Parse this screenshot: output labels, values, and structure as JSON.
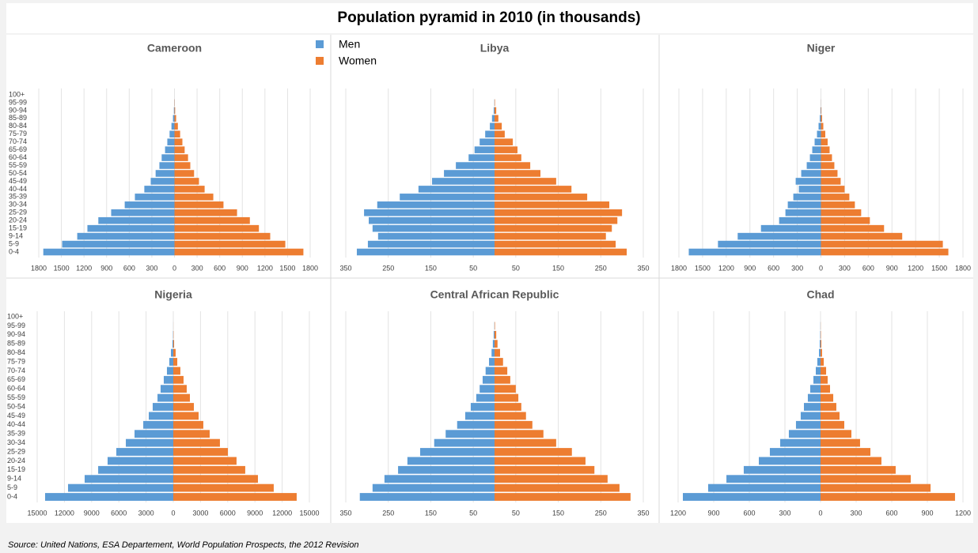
{
  "title": "Population pyramid in 2010 (in thousands)",
  "source": "Source: United Nations, ESA Departement, World Population Prospects, the 2012 Revision",
  "chart_data": [
    {
      "type": "bar",
      "orientation": "horizontal",
      "title": "Cameroon",
      "categories": [
        "0-4",
        "5-9",
        "9-14",
        "15-19",
        "20-24",
        "25-29",
        "30-34",
        "35-39",
        "40-44",
        "45-49",
        "50-54",
        "55-59",
        "60-64",
        "65-69",
        "70-74",
        "75-79",
        "80-84",
        "85-89",
        "90-94",
        "95-99",
        "100+"
      ],
      "series": [
        {
          "name": "Men",
          "color": "#5b9bd5",
          "values": [
            -1740,
            -1490,
            -1290,
            -1155,
            -1010,
            -840,
            -660,
            -525,
            -400,
            -315,
            -250,
            -200,
            -170,
            -125,
            -95,
            -65,
            -40,
            -20,
            -8,
            -2,
            0
          ]
        },
        {
          "name": "Women",
          "color": "#ed7d31",
          "values": [
            1710,
            1470,
            1270,
            1120,
            1000,
            830,
            650,
            515,
            400,
            325,
            260,
            210,
            180,
            135,
            105,
            75,
            45,
            22,
            9,
            3,
            0
          ]
        }
      ],
      "xlim": [
        -1800,
        1800
      ],
      "xticks": [
        {
          "value": -1800,
          "label": "1800"
        },
        {
          "value": -1500,
          "label": "1500"
        },
        {
          "value": -1200,
          "label": "1200"
        },
        {
          "value": -900,
          "label": "900"
        },
        {
          "value": -600,
          "label": "600"
        },
        {
          "value": -300,
          "label": "300"
        },
        0,
        300,
        600,
        900,
        1200,
        1500,
        1800
      ],
      "grid": true
    },
    {
      "type": "bar",
      "orientation": "horizontal",
      "title": "Libya",
      "series": [
        {
          "name": "Men",
          "color": "#5b9bd5",
          "values": [
            -324,
            -298,
            -274,
            -287,
            -296,
            -307,
            -276,
            -223,
            -179,
            -147,
            -119,
            -91,
            -61,
            -47,
            -35,
            -22,
            -11,
            -6,
            -2,
            -0.5,
            0
          ]
        },
        {
          "name": "Women",
          "color": "#ed7d31",
          "values": [
            311,
            285,
            262,
            276,
            289,
            300,
            270,
            218,
            181,
            145,
            108,
            84,
            63,
            54,
            43,
            24,
            17,
            9,
            4,
            1,
            0
          ]
        }
      ],
      "xlim": [
        -350,
        350
      ],
      "xticks": [
        {
          "value": -350,
          "label": "350"
        },
        {
          "value": -250,
          "label": "250"
        },
        {
          "value": -150,
          "label": "150"
        },
        {
          "value": -50,
          "label": "50"
        },
        50,
        150,
        250,
        350
      ],
      "grid": true
    },
    {
      "type": "bar",
      "orientation": "horizontal",
      "title": "Niger",
      "series": [
        {
          "name": "Men",
          "color": "#5b9bd5",
          "values": [
            -1675,
            -1305,
            -1055,
            -760,
            -530,
            -450,
            -420,
            -350,
            -280,
            -320,
            -250,
            -180,
            -140,
            -110,
            -80,
            -50,
            -30,
            -15,
            -6,
            -1,
            0
          ]
        },
        {
          "name": "Women",
          "color": "#ed7d31",
          "values": [
            1615,
            1545,
            1030,
            800,
            620,
            510,
            430,
            360,
            300,
            250,
            210,
            170,
            140,
            110,
            85,
            55,
            30,
            15,
            6,
            1,
            0
          ]
        }
      ],
      "xlim": [
        -1800,
        1800
      ],
      "xticks": [
        {
          "value": -1800,
          "label": "1800"
        },
        {
          "value": -1500,
          "label": "1500"
        },
        {
          "value": -1200,
          "label": "1200"
        },
        {
          "value": -900,
          "label": "900"
        },
        {
          "value": -600,
          "label": "600"
        },
        {
          "value": -300,
          "label": "300"
        },
        0,
        300,
        600,
        900,
        1200,
        1500,
        1800
      ],
      "grid": true
    },
    {
      "type": "bar",
      "orientation": "horizontal",
      "title": "Nigeria",
      "categories": [
        "0-4",
        "5-9",
        "9-14",
        "15-19",
        "20-24",
        "25-29",
        "30-34",
        "35-39",
        "40-44",
        "45-49",
        "50-54",
        "55-59",
        "60-64",
        "65-69",
        "70-74",
        "75-79",
        "80-84",
        "85-89",
        "90-94",
        "95-99",
        "100+"
      ],
      "series": [
        {
          "name": "Men",
          "color": "#5b9bd5",
          "values": [
            -14130,
            -11600,
            -9770,
            -8280,
            -7240,
            -6280,
            -5230,
            -4270,
            -3310,
            -2700,
            -2270,
            -1740,
            -1400,
            -1050,
            -700,
            -440,
            -260,
            -90,
            -30,
            -5,
            0
          ]
        },
        {
          "name": "Women",
          "color": "#ed7d31",
          "values": [
            13600,
            11070,
            9330,
            7930,
            6970,
            6020,
            5140,
            4010,
            3310,
            2790,
            2270,
            1830,
            1480,
            1130,
            780,
            440,
            260,
            90,
            30,
            5,
            0
          ]
        }
      ],
      "xlim": [
        -15000,
        15000
      ],
      "xticks": [
        {
          "value": -15000,
          "label": "15000"
        },
        {
          "value": -12000,
          "label": "12000"
        },
        {
          "value": -9000,
          "label": "9000"
        },
        {
          "value": -6000,
          "label": "6000"
        },
        {
          "value": -3000,
          "label": "3000"
        },
        0,
        3000,
        6000,
        9000,
        12000,
        15000
      ],
      "grid": true
    },
    {
      "type": "bar",
      "orientation": "horizontal",
      "title": "Central African Republic",
      "series": [
        {
          "name": "Men",
          "color": "#5b9bd5",
          "values": [
            -317,
            -287,
            -259,
            -227,
            -205,
            -175,
            -142,
            -115,
            -88,
            -69,
            -56,
            -43,
            -35,
            -28,
            -21,
            -13,
            -7,
            -4,
            -2,
            -0.5,
            0
          ]
        },
        {
          "name": "Women",
          "color": "#ed7d31",
          "values": [
            320,
            294,
            266,
            235,
            214,
            182,
            145,
            115,
            89,
            74,
            63,
            56,
            50,
            37,
            30,
            20,
            13,
            7,
            4,
            1,
            0
          ]
        }
      ],
      "xlim": [
        -350,
        350
      ],
      "xticks": [
        {
          "value": -350,
          "label": "350"
        },
        {
          "value": -250,
          "label": "250"
        },
        {
          "value": -150,
          "label": "150"
        },
        {
          "value": -50,
          "label": "50"
        },
        50,
        150,
        250,
        350
      ],
      "grid": true
    },
    {
      "type": "bar",
      "orientation": "horizontal",
      "title": "Chad",
      "series": [
        {
          "name": "Men",
          "color": "#5b9bd5",
          "values": [
            -1160,
            -947,
            -793,
            -647,
            -520,
            -427,
            -340,
            -267,
            -207,
            -167,
            -140,
            -107,
            -87,
            -60,
            -40,
            -27,
            -13,
            -7,
            -3,
            -1,
            0
          ]
        },
        {
          "name": "Women",
          "color": "#ed7d31",
          "values": [
            1133,
            927,
            760,
            633,
            513,
            420,
            333,
            260,
            200,
            160,
            133,
            107,
            80,
            60,
            47,
            27,
            13,
            7,
            3,
            1,
            0
          ]
        }
      ],
      "xlim": [
        -1200,
        1200
      ],
      "xticks": [
        {
          "value": -1200,
          "label": "1200"
        },
        {
          "value": -900,
          "label": "900"
        },
        {
          "value": -600,
          "label": "600"
        },
        {
          "value": -300,
          "label": "300"
        },
        0,
        300,
        600,
        900,
        1200
      ],
      "grid": true
    }
  ]
}
